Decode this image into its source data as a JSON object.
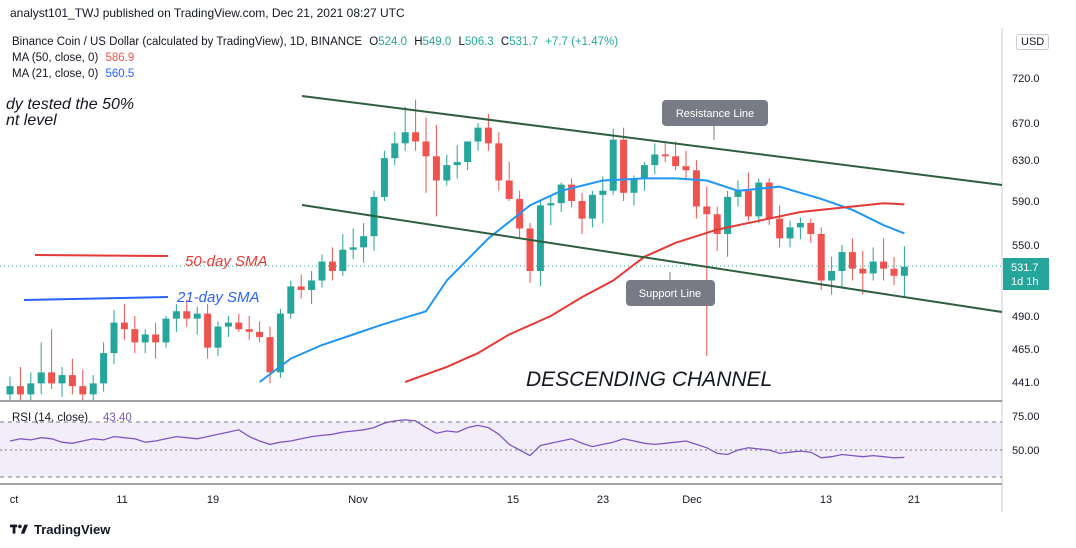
{
  "header": {
    "text": "analyst101_TWJ published on TradingView.com, Dec 21, 2021 08:27 UTC"
  },
  "legend": {
    "symbol": "Binance Coin / US Dollar (calculated by TradingView), 1D, BINANCE",
    "ohlc": {
      "o_label": "O",
      "o": "524.0",
      "h_label": "H",
      "h": "549.0",
      "l_label": "L",
      "l": "506.3",
      "c_label": "C",
      "c": "531.7",
      "change": "+7.7 (+1.47%)"
    },
    "ma50": {
      "label": "MA (50, close, 0)",
      "value": "586.9"
    },
    "ma21": {
      "label": "MA (21, close, 0)",
      "value": "560.5"
    }
  },
  "currency_button": "USD",
  "price_tag": {
    "price": "531.7",
    "tf": "1d 1h"
  },
  "rsi_label": {
    "name": "RSI (14, close)",
    "value": "43.40"
  },
  "annotations": {
    "partial_line1": "dy tested the 50%",
    "partial_line2": "nt level",
    "sma50": "50-day SMA",
    "sma21": "21-day SMA",
    "resistance": "Resistance Line",
    "support": "Support Line",
    "channel": "DESCENDING CHANNEL"
  },
  "footer": {
    "brand": "TradingView"
  },
  "colors": {
    "up": "#26a69a",
    "down": "#ef5350",
    "ma21": "#2196f3",
    "ma50": "#e53935",
    "channel": "#2e5e3e",
    "rsi": "#7e57c2"
  },
  "chart_data": {
    "type": "candlestick",
    "title": "Binance Coin / US Dollar (calculated by TradingView), 1D, BINANCE",
    "x_tick_labels": [
      "ct",
      "11",
      "19",
      "Nov",
      "15",
      "23",
      "Dec",
      "13",
      "21"
    ],
    "y_tick_labels": [
      "720.0",
      "670.0",
      "630.0",
      "590.0",
      "550.0",
      "490.0",
      "465.0",
      "441.0"
    ],
    "candles": [
      {
        "o": 432,
        "h": 445,
        "l": 420,
        "c": 438
      },
      {
        "o": 438,
        "h": 452,
        "l": 428,
        "c": 432
      },
      {
        "o": 432,
        "h": 448,
        "l": 425,
        "c": 440
      },
      {
        "o": 440,
        "h": 470,
        "l": 432,
        "c": 448
      },
      {
        "o": 448,
        "h": 480,
        "l": 436,
        "c": 440
      },
      {
        "o": 440,
        "h": 452,
        "l": 430,
        "c": 446
      },
      {
        "o": 446,
        "h": 458,
        "l": 432,
        "c": 438
      },
      {
        "o": 438,
        "h": 450,
        "l": 426,
        "c": 432
      },
      {
        "o": 432,
        "h": 446,
        "l": 420,
        "c": 440
      },
      {
        "o": 440,
        "h": 470,
        "l": 434,
        "c": 462
      },
      {
        "o": 462,
        "h": 495,
        "l": 454,
        "c": 485
      },
      {
        "o": 485,
        "h": 500,
        "l": 472,
        "c": 480
      },
      {
        "o": 480,
        "h": 490,
        "l": 462,
        "c": 470
      },
      {
        "o": 470,
        "h": 480,
        "l": 462,
        "c": 476
      },
      {
        "o": 476,
        "h": 485,
        "l": 458,
        "c": 470
      },
      {
        "o": 470,
        "h": 490,
        "l": 466,
        "c": 488
      },
      {
        "o": 488,
        "h": 500,
        "l": 478,
        "c": 494
      },
      {
        "o": 494,
        "h": 504,
        "l": 482,
        "c": 488
      },
      {
        "o": 488,
        "h": 498,
        "l": 476,
        "c": 492
      },
      {
        "o": 492,
        "h": 500,
        "l": 458,
        "c": 466
      },
      {
        "o": 466,
        "h": 486,
        "l": 460,
        "c": 482
      },
      {
        "o": 482,
        "h": 490,
        "l": 474,
        "c": 485
      },
      {
        "o": 485,
        "h": 492,
        "l": 478,
        "c": 480
      },
      {
        "o": 480,
        "h": 490,
        "l": 472,
        "c": 478
      },
      {
        "o": 478,
        "h": 486,
        "l": 470,
        "c": 474
      },
      {
        "o": 474,
        "h": 482,
        "l": 440,
        "c": 448
      },
      {
        "o": 448,
        "h": 496,
        "l": 444,
        "c": 492
      },
      {
        "o": 492,
        "h": 520,
        "l": 488,
        "c": 515
      },
      {
        "o": 515,
        "h": 525,
        "l": 505,
        "c": 512
      },
      {
        "o": 512,
        "h": 528,
        "l": 500,
        "c": 520
      },
      {
        "o": 520,
        "h": 542,
        "l": 514,
        "c": 536
      },
      {
        "o": 536,
        "h": 548,
        "l": 520,
        "c": 528
      },
      {
        "o": 528,
        "h": 560,
        "l": 524,
        "c": 546
      },
      {
        "o": 546,
        "h": 565,
        "l": 538,
        "c": 548
      },
      {
        "o": 548,
        "h": 570,
        "l": 535,
        "c": 558
      },
      {
        "o": 558,
        "h": 600,
        "l": 545,
        "c": 594
      },
      {
        "o": 594,
        "h": 640,
        "l": 590,
        "c": 632
      },
      {
        "o": 632,
        "h": 660,
        "l": 625,
        "c": 648
      },
      {
        "o": 648,
        "h": 688,
        "l": 640,
        "c": 660
      },
      {
        "o": 660,
        "h": 696,
        "l": 640,
        "c": 650
      },
      {
        "o": 650,
        "h": 676,
        "l": 598,
        "c": 634
      },
      {
        "o": 634,
        "h": 668,
        "l": 576,
        "c": 610
      },
      {
        "o": 610,
        "h": 636,
        "l": 605,
        "c": 625
      },
      {
        "o": 625,
        "h": 646,
        "l": 612,
        "c": 628
      },
      {
        "o": 628,
        "h": 650,
        "l": 620,
        "c": 650
      },
      {
        "o": 650,
        "h": 670,
        "l": 640,
        "c": 665
      },
      {
        "o": 665,
        "h": 680,
        "l": 640,
        "c": 648
      },
      {
        "o": 648,
        "h": 660,
        "l": 600,
        "c": 610
      },
      {
        "o": 610,
        "h": 628,
        "l": 590,
        "c": 592
      },
      {
        "o": 592,
        "h": 600,
        "l": 556,
        "c": 565
      },
      {
        "o": 565,
        "h": 570,
        "l": 518,
        "c": 528
      },
      {
        "o": 528,
        "h": 590,
        "l": 515,
        "c": 586
      },
      {
        "o": 586,
        "h": 596,
        "l": 568,
        "c": 588
      },
      {
        "o": 588,
        "h": 608,
        "l": 580,
        "c": 606
      },
      {
        "o": 606,
        "h": 612,
        "l": 584,
        "c": 590
      },
      {
        "o": 590,
        "h": 598,
        "l": 560,
        "c": 574
      },
      {
        "o": 574,
        "h": 600,
        "l": 566,
        "c": 596
      },
      {
        "o": 596,
        "h": 614,
        "l": 570,
        "c": 600
      },
      {
        "o": 600,
        "h": 664,
        "l": 596,
        "c": 652
      },
      {
        "o": 652,
        "h": 665,
        "l": 590,
        "c": 598
      },
      {
        "o": 598,
        "h": 615,
        "l": 586,
        "c": 612
      },
      {
        "o": 612,
        "h": 628,
        "l": 600,
        "c": 625
      },
      {
        "o": 625,
        "h": 648,
        "l": 616,
        "c": 636
      },
      {
        "o": 636,
        "h": 648,
        "l": 628,
        "c": 634
      },
      {
        "o": 634,
        "h": 650,
        "l": 620,
        "c": 624
      },
      {
        "o": 624,
        "h": 640,
        "l": 610,
        "c": 620
      },
      {
        "o": 620,
        "h": 630,
        "l": 574,
        "c": 585
      },
      {
        "o": 585,
        "h": 604,
        "l": 460,
        "c": 578
      },
      {
        "o": 578,
        "h": 585,
        "l": 545,
        "c": 560
      },
      {
        "o": 560,
        "h": 600,
        "l": 540,
        "c": 594
      },
      {
        "o": 594,
        "h": 610,
        "l": 585,
        "c": 600
      },
      {
        "o": 600,
        "h": 618,
        "l": 572,
        "c": 576
      },
      {
        "o": 576,
        "h": 612,
        "l": 570,
        "c": 608
      },
      {
        "o": 608,
        "h": 612,
        "l": 568,
        "c": 574
      },
      {
        "o": 574,
        "h": 586,
        "l": 548,
        "c": 556
      },
      {
        "o": 556,
        "h": 572,
        "l": 548,
        "c": 566
      },
      {
        "o": 566,
        "h": 575,
        "l": 555,
        "c": 570
      },
      {
        "o": 570,
        "h": 574,
        "l": 552,
        "c": 560
      },
      {
        "o": 560,
        "h": 566,
        "l": 512,
        "c": 520
      },
      {
        "o": 520,
        "h": 540,
        "l": 508,
        "c": 528
      },
      {
        "o": 528,
        "h": 550,
        "l": 514,
        "c": 544
      },
      {
        "o": 544,
        "h": 556,
        "l": 520,
        "c": 530
      },
      {
        "o": 530,
        "h": 545,
        "l": 508,
        "c": 526
      },
      {
        "o": 526,
        "h": 548,
        "l": 520,
        "c": 536
      },
      {
        "o": 536,
        "h": 556,
        "l": 520,
        "c": 530
      },
      {
        "o": 530,
        "h": 540,
        "l": 516,
        "c": 524
      },
      {
        "o": 524,
        "h": 549,
        "l": 506.3,
        "c": 531.7
      }
    ],
    "ma21": [
      {
        "i": 24,
        "v": 441
      },
      {
        "i": 27,
        "v": 458
      },
      {
        "i": 30,
        "v": 468
      },
      {
        "i": 33,
        "v": 476
      },
      {
        "i": 36,
        "v": 484
      },
      {
        "i": 40,
        "v": 494
      },
      {
        "i": 42,
        "v": 520
      },
      {
        "i": 46,
        "v": 556
      },
      {
        "i": 50,
        "v": 586
      },
      {
        "i": 53,
        "v": 600
      },
      {
        "i": 57,
        "v": 610
      },
      {
        "i": 61,
        "v": 612
      },
      {
        "i": 64,
        "v": 612
      },
      {
        "i": 67,
        "v": 610
      },
      {
        "i": 70,
        "v": 600
      },
      {
        "i": 74,
        "v": 604
      },
      {
        "i": 78,
        "v": 592
      },
      {
        "i": 81,
        "v": 582
      },
      {
        "i": 84,
        "v": 568
      },
      {
        "i": 86,
        "v": 560.5
      }
    ],
    "ma50": [
      {
        "i": 38,
        "v": 441
      },
      {
        "i": 42,
        "v": 452
      },
      {
        "i": 45,
        "v": 462
      },
      {
        "i": 48,
        "v": 476
      },
      {
        "i": 52,
        "v": 490
      },
      {
        "i": 55,
        "v": 506
      },
      {
        "i": 58,
        "v": 520
      },
      {
        "i": 61,
        "v": 540
      },
      {
        "i": 64,
        "v": 552
      },
      {
        "i": 68,
        "v": 564
      },
      {
        "i": 72,
        "v": 572
      },
      {
        "i": 76,
        "v": 580
      },
      {
        "i": 80,
        "v": 584
      },
      {
        "i": 84,
        "v": 588
      },
      {
        "i": 86,
        "v": 586.9
      }
    ],
    "rsi": [
      58,
      60,
      59,
      61,
      60,
      57,
      56,
      58,
      60,
      59,
      62,
      61,
      60,
      57,
      58,
      60,
      62,
      61,
      60,
      62,
      64,
      66,
      68,
      62,
      58,
      55,
      57,
      58,
      60,
      62,
      63,
      64,
      66,
      67,
      68,
      70,
      74,
      76,
      77,
      76,
      70,
      65,
      67,
      66,
      70,
      72,
      70,
      64,
      55,
      50,
      45,
      54,
      56,
      58,
      60,
      56,
      53,
      55,
      57,
      60,
      58,
      56,
      55,
      56,
      57,
      58,
      55,
      52,
      47,
      46,
      50,
      52,
      51,
      50,
      47,
      48,
      49,
      48,
      43,
      44,
      46,
      45,
      44,
      45,
      44,
      43,
      43.4
    ],
    "rsi_levels": [
      "75.00",
      "50.00"
    ]
  }
}
